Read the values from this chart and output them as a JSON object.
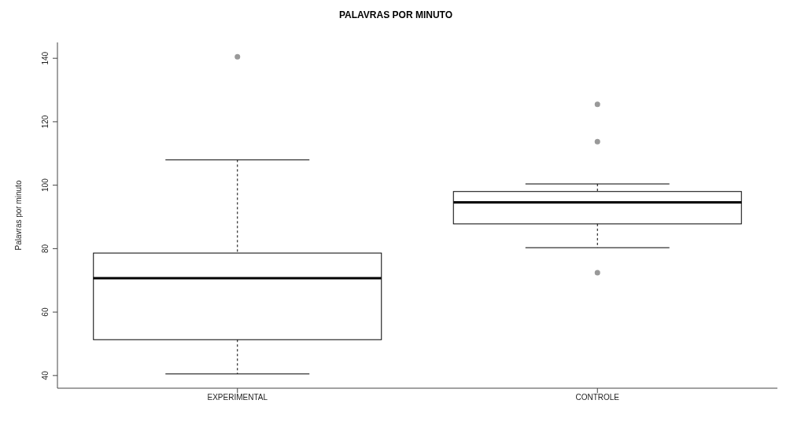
{
  "chart_data": {
    "type": "box",
    "title": "PALAVRAS POR MINUTO",
    "ylabel": "Palavras por minuto",
    "categories": [
      "EXPERIMENTAL",
      "CONTROLE"
    ],
    "boxes": [
      {
        "low": 40.5,
        "q1": 51.3,
        "median": 70.7,
        "q3": 78.6,
        "high": 108,
        "outliers": [
          140.5
        ]
      },
      {
        "low": 80.3,
        "q1": 87.8,
        "median": 94.6,
        "q3": 98,
        "high": 100.4,
        "outliers": [
          125.5,
          113.7,
          72.4
        ]
      }
    ],
    "color": "#000000",
    "ylim": [
      36,
      145
    ],
    "yticks": [
      40,
      60,
      80,
      100,
      120,
      140
    ],
    "grid": false
  }
}
